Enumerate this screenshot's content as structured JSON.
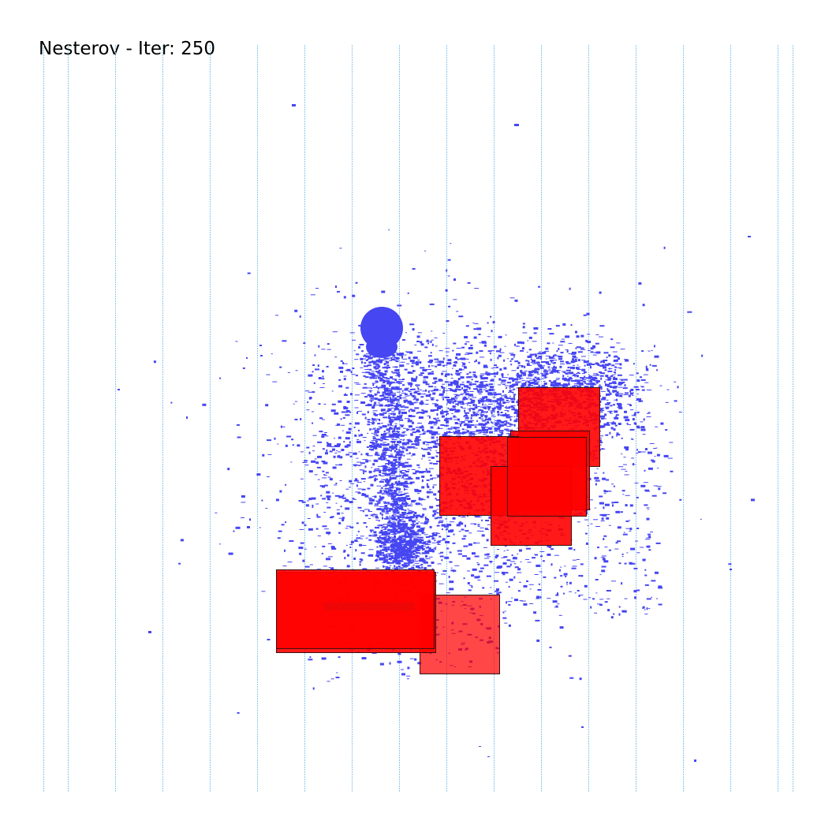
{
  "title": "Nesterov - Iter: 250",
  "colors": {
    "background": "#ffffff",
    "grid": "#8ec8ee",
    "cells": "#4646f2",
    "macro": "#ff0000",
    "macro_border": "#3a1010"
  }
}
